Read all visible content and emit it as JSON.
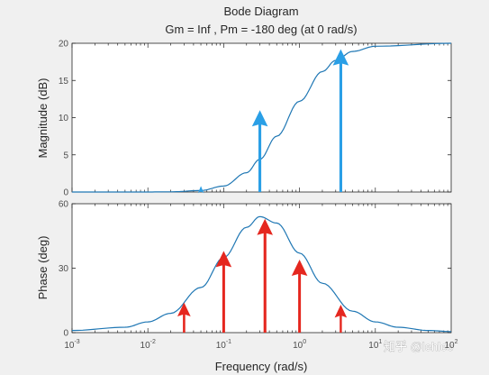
{
  "figure": {
    "title": "Bode Diagram",
    "subtitle": "Gm = Inf ,  Pm = -180 deg (at 0 rad/s)",
    "watermark": "知乎 @lehleo"
  },
  "colors": {
    "background": "#f0f0f0",
    "axes_background": "#ffffff",
    "curve": "#1f77b4",
    "magnitude_arrows": "#2a9fe6",
    "phase_arrows": "#e5271f",
    "axes_edge": "#262626"
  },
  "chart_data": [
    {
      "type": "line",
      "id": "magnitude",
      "title": "Bode Diagram",
      "subtitle": "Gm = Inf ,  Pm = -180 deg (at 0 rad/s)",
      "xlabel": "",
      "ylabel": "Magnitude (dB)",
      "xscale": "log",
      "xlim": [
        0.001,
        100
      ],
      "ylim": [
        0,
        20
      ],
      "yticks": [
        0,
        5,
        10,
        15,
        20
      ],
      "ytick_labels": [
        "0",
        "5",
        "10",
        "15",
        "20"
      ],
      "grid": false,
      "x": [
        0.001,
        0.01,
        0.02,
        0.05,
        0.1,
        0.2,
        0.3,
        0.5,
        1,
        2,
        3,
        5,
        10,
        100
      ],
      "y": [
        0.0,
        0.0,
        0.03,
        0.2,
        0.8,
        2.6,
        4.4,
        7.5,
        12.2,
        16.2,
        17.7,
        18.9,
        19.6,
        20.0
      ],
      "annotations": {
        "kind": "arrows",
        "color": "#2a9fe6",
        "items": [
          {
            "x": 0.05,
            "y_from": 0,
            "y_to": 0.8
          },
          {
            "x": 0.3,
            "y_from": 0,
            "y_to": 11.0
          },
          {
            "x": 3.5,
            "y_from": 0,
            "y_to": 19.2
          }
        ]
      }
    },
    {
      "type": "line",
      "id": "phase",
      "xlabel": "Frequency  (rad/s)",
      "ylabel": "Phase (deg)",
      "xscale": "log",
      "xlim": [
        0.001,
        100
      ],
      "ylim": [
        0,
        60
      ],
      "yticks": [
        0,
        30,
        60
      ],
      "ytick_labels": [
        "0",
        "30",
        "60"
      ],
      "xticks": [
        0.001,
        0.01,
        0.1,
        1,
        10,
        100
      ],
      "xtick_labels": [
        {
          "base": "10",
          "exp": "-3"
        },
        {
          "base": "10",
          "exp": "-2"
        },
        {
          "base": "10",
          "exp": "-1"
        },
        {
          "base": "10",
          "exp": "0"
        },
        {
          "base": "10",
          "exp": "1"
        },
        {
          "base": "10",
          "exp": "2"
        }
      ],
      "grid": false,
      "x": [
        0.001,
        0.005,
        0.01,
        0.02,
        0.05,
        0.1,
        0.2,
        0.3,
        0.5,
        1,
        2,
        5,
        10,
        20,
        50,
        100
      ],
      "y": [
        1.0,
        2.5,
        5.0,
        9.0,
        21.0,
        35.0,
        49.0,
        54.0,
        51.0,
        37.0,
        23.0,
        10.0,
        5.0,
        2.5,
        1.0,
        0.5
      ],
      "annotations": {
        "kind": "arrows",
        "color": "#e5271f",
        "items": [
          {
            "x": 0.03,
            "y_from": 0,
            "y_to": 14
          },
          {
            "x": 0.1,
            "y_from": 0,
            "y_to": 38
          },
          {
            "x": 0.35,
            "y_from": 0,
            "y_to": 53
          },
          {
            "x": 1.0,
            "y_from": 0,
            "y_to": 34
          },
          {
            "x": 3.5,
            "y_from": 0,
            "y_to": 13
          }
        ]
      }
    }
  ]
}
